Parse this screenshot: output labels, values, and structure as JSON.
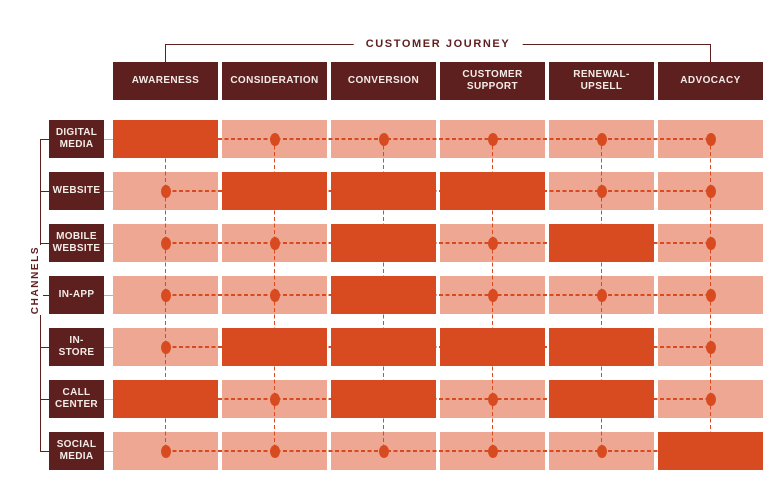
{
  "header": {
    "title": "CUSTOMER JOURNEY"
  },
  "sidebar": {
    "label": "CHANNELS"
  },
  "matrix": {
    "stages": [
      "AWARENESS",
      "CONSIDERATION",
      "CONVERSION",
      "CUSTOMER\nSUPPORT",
      "RENEWAL-\nUPSELL",
      "ADVOCACY"
    ],
    "rows": [
      {
        "channel": "DIGITAL\nMEDIA",
        "active": [
          true,
          false,
          false,
          false,
          false,
          false
        ]
      },
      {
        "channel": "WEBSITE",
        "active": [
          false,
          true,
          true,
          true,
          false,
          false
        ]
      },
      {
        "channel": "MOBILE\nWEBSITE",
        "active": [
          false,
          false,
          true,
          false,
          true,
          false
        ]
      },
      {
        "channel": "IN-APP",
        "active": [
          false,
          false,
          true,
          false,
          false,
          false
        ]
      },
      {
        "channel": "IN-\nSTORE",
        "active": [
          false,
          true,
          true,
          true,
          true,
          false
        ]
      },
      {
        "channel": "CALL\nCENTER",
        "active": [
          true,
          false,
          true,
          false,
          true,
          false
        ]
      },
      {
        "channel": "SOCIAL\nMEDIA",
        "active": [
          false,
          false,
          false,
          false,
          false,
          true
        ]
      }
    ]
  },
  "colors": {
    "maroon": "#5e1f1f",
    "orange": "#d84b20",
    "salmon": "#eea792",
    "text_light": "#f3ece7"
  }
}
